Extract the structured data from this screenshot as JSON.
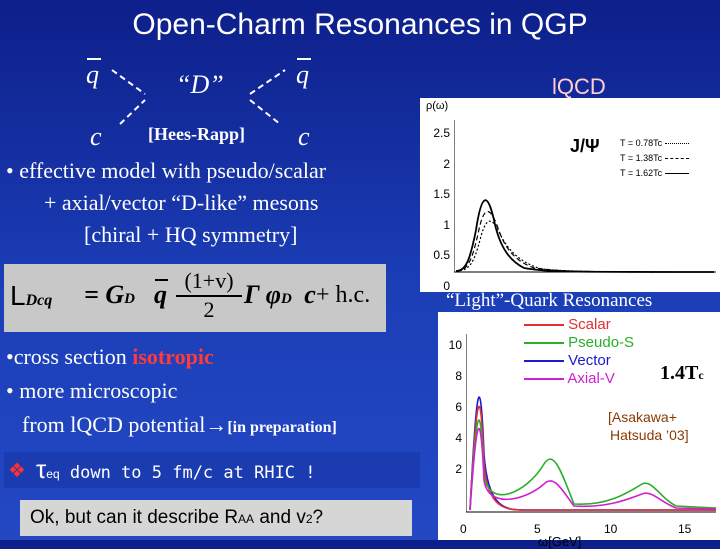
{
  "title": "Open-Charm Resonances in QGP",
  "diagram": {
    "qbar_left": "q",
    "D_label": "“D”",
    "qbar_right": "q",
    "c_left": "c",
    "c_right": "c",
    "hees_rapp": "[Hees-Rapp]"
  },
  "bullets1": {
    "b1": "• effective model with pseudo/scalar",
    "b2": "+ axial/vector “D-like” mesons",
    "b3": "[chiral + HQ symmetry]"
  },
  "lagrangian": {
    "L": "L",
    "sub": "Dcq",
    "eq": "= G",
    "gsub": "D",
    "qbar": "q",
    "num": "(1+v)",
    "den": "2",
    "gamma": "Γ",
    "phi": "φ",
    "phisub": "D",
    "c": "c",
    "hc": "+ h.c."
  },
  "bullets2": {
    "b1_pre": "•cross section",
    "b1_red": "isotropic",
    "b2": "• more microscopic",
    "b3_pre": "from lQCD potential→",
    "b3_br": "[in preparation]"
  },
  "teq": {
    "diamond": "❖",
    "t": "τ",
    "sub": "eq",
    "rest": " down to 5 fm/c at RHIC !"
  },
  "question": {
    "pre": "Ok, but can it describe R",
    "sub1": "AA",
    "mid": " and v",
    "sub2": "2",
    "post": "?"
  },
  "lqcd": {
    "heading": "lQCD",
    "ylabel": "ρ(ω)",
    "jpsi": "J/Ψ",
    "legend": [
      "T = 0.78Tc",
      "T = 1.38Tc",
      "T = 1.62Tc"
    ],
    "yticks": [
      "2.5",
      "2",
      "1.5",
      "1",
      "0.5",
      "0"
    ]
  },
  "light": {
    "heading": "“Light”-Quark Resonances",
    "legend": [
      "Scalar",
      "Pseudo-S",
      "Vector",
      "Axial-V"
    ],
    "legend_colors": [
      "#e03030",
      "#28b028",
      "#1a1ad0",
      "#d020d0"
    ],
    "temp": "1.4T",
    "temp_sub": "c",
    "ref1": "[Asakawa+",
    "ref2": "Hatsuda ’03]",
    "yticks": [
      "10",
      "8",
      "6",
      "4",
      "2"
    ],
    "xticks": [
      "0",
      "5",
      "10",
      "15"
    ],
    "xlabel": "ω[GeV]"
  }
}
